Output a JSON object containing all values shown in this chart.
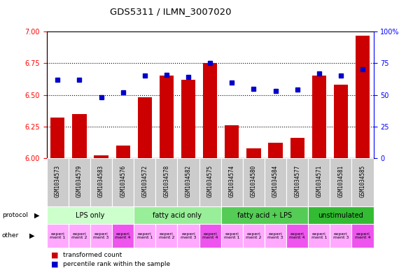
{
  "title": "GDS5311 / ILMN_3007020",
  "samples": [
    "GSM1034573",
    "GSM1034579",
    "GSM1034583",
    "GSM1034576",
    "GSM1034572",
    "GSM1034578",
    "GSM1034582",
    "GSM1034575",
    "GSM1034574",
    "GSM1034580",
    "GSM1034584",
    "GSM1034577",
    "GSM1034571",
    "GSM1034581",
    "GSM1034585"
  ],
  "transformed_count": [
    6.32,
    6.35,
    6.02,
    6.1,
    6.48,
    6.65,
    6.62,
    6.75,
    6.26,
    6.08,
    6.12,
    6.16,
    6.65,
    6.58,
    6.97
  ],
  "percentile_rank": [
    62,
    62,
    48,
    52,
    65,
    66,
    64,
    75,
    60,
    55,
    53,
    54,
    67,
    65,
    70
  ],
  "ylim_left": [
    6.0,
    7.0
  ],
  "ylim_right": [
    0,
    100
  ],
  "yticks_left": [
    6.0,
    6.25,
    6.5,
    6.75,
    7.0
  ],
  "yticks_right": [
    0,
    25,
    50,
    75,
    100
  ],
  "protocols": [
    {
      "label": "LPS only",
      "start": 0,
      "end": 4,
      "color": "#ccffcc"
    },
    {
      "label": "fatty acid only",
      "start": 4,
      "end": 8,
      "color": "#99ee99"
    },
    {
      "label": "fatty acid + LPS",
      "start": 8,
      "end": 12,
      "color": "#55cc55"
    },
    {
      "label": "unstimulated",
      "start": 12,
      "end": 15,
      "color": "#33bb33"
    }
  ],
  "other_labels": [
    "experi\nment 1",
    "experi\nment 2",
    "experi\nment 3",
    "experi\nment 4",
    "experi\nment 1",
    "experi\nment 2",
    "experi\nment 3",
    "experi\nment 4",
    "experi\nment 1",
    "experi\nment 2",
    "experi\nment 3",
    "experi\nment 4",
    "experi\nment 1",
    "experi\nment 3",
    "experi\nment 4"
  ],
  "other_colors": [
    "#ffaaff",
    "#ffaaff",
    "#ffaaff",
    "#ee55ee",
    "#ffaaff",
    "#ffaaff",
    "#ffaaff",
    "#ee55ee",
    "#ffaaff",
    "#ffaaff",
    "#ffaaff",
    "#ee55ee",
    "#ffaaff",
    "#ffaaff",
    "#ee55ee"
  ],
  "bar_color": "#cc0000",
  "dot_color": "#0000cc",
  "background_color": "#ffffff",
  "xticklabel_bg": "#cccccc"
}
